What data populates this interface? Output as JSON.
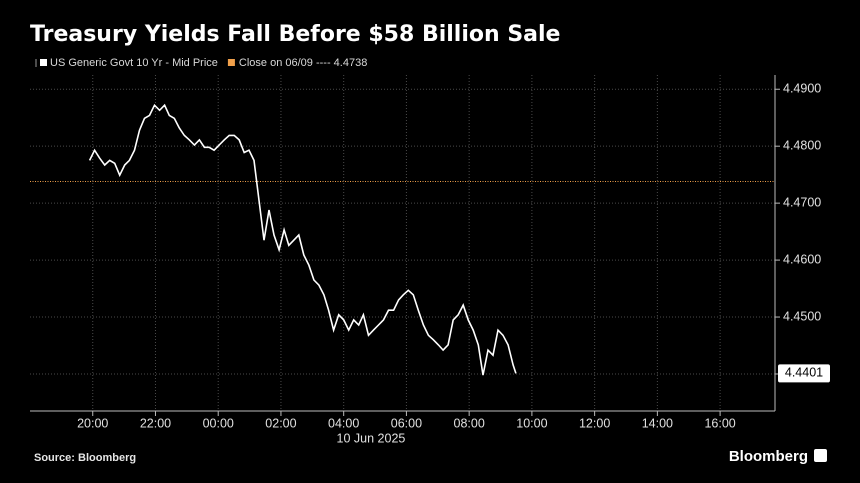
{
  "chart_data": {
    "type": "line",
    "title": "Treasury Yields Fall Before $58 Billion Sale",
    "source": "Source: Bloomberg",
    "brand": "Bloomberg",
    "x_sublabel": "10 Jun 2025",
    "xlim": [
      18,
      41.75
    ],
    "xticks": [
      {
        "value": 20,
        "label": "20:00"
      },
      {
        "value": 22,
        "label": "22:00"
      },
      {
        "value": 24,
        "label": "00:00"
      },
      {
        "value": 26,
        "label": "02:00"
      },
      {
        "value": 28,
        "label": "04:00"
      },
      {
        "value": 30,
        "label": "06:00"
      },
      {
        "value": 32,
        "label": "08:00"
      },
      {
        "value": 34,
        "label": "10:00"
      },
      {
        "value": 36,
        "label": "12:00"
      },
      {
        "value": 38,
        "label": "14:00"
      },
      {
        "value": 40,
        "label": "16:00"
      }
    ],
    "ylim": [
      4.4335,
      4.4925
    ],
    "yticks": [
      {
        "value": 4.44,
        "label": "4.4400"
      },
      {
        "value": 4.45,
        "label": "4.4500"
      },
      {
        "value": 4.46,
        "label": "4.4600"
      },
      {
        "value": 4.47,
        "label": "4.4700"
      },
      {
        "value": 4.48,
        "label": "4.4800"
      },
      {
        "value": 4.49,
        "label": "4.4900"
      }
    ],
    "grid": true,
    "reference": {
      "name": "Close on 06/09 ---- 4.4738",
      "value": 4.4738,
      "color": "#f0a04b"
    },
    "series": [
      {
        "name": "US Generic Govt 10 Yr - Mid Price",
        "color": "#ffffff",
        "x": [
          19.9,
          20.06,
          20.22,
          20.38,
          20.54,
          20.7,
          20.86,
          21.02,
          21.17,
          21.33,
          21.49,
          21.65,
          21.81,
          21.97,
          22.13,
          22.29,
          22.44,
          22.6,
          22.76,
          22.92,
          23.08,
          23.24,
          23.4,
          23.56,
          23.71,
          23.87,
          24.03,
          24.19,
          24.35,
          24.51,
          24.67,
          24.83,
          24.98,
          25.14,
          25.3,
          25.46,
          25.62,
          25.78,
          25.94,
          26.1,
          26.25,
          26.41,
          26.57,
          26.73,
          26.89,
          27.05,
          27.21,
          27.37,
          27.52,
          27.68,
          27.84,
          28.0,
          28.16,
          28.32,
          28.48,
          28.63,
          28.79,
          28.95,
          29.11,
          29.27,
          29.43,
          29.59,
          29.75,
          29.9,
          30.06,
          30.22,
          30.38,
          30.54,
          30.7,
          30.86,
          31.02,
          31.17,
          31.33,
          31.49,
          31.65,
          31.81,
          31.97,
          32.13,
          32.29,
          32.44,
          32.6,
          32.76,
          32.92,
          33.08,
          33.24,
          33.4,
          33.49
        ],
        "values": [
          4.4775,
          4.4793,
          4.4779,
          4.4767,
          4.4775,
          4.477,
          4.4749,
          4.4767,
          4.4775,
          4.4793,
          4.4828,
          4.4849,
          4.4854,
          4.4872,
          4.4863,
          4.4872,
          4.4854,
          4.4849,
          4.4832,
          4.4819,
          4.4811,
          4.4802,
          4.4811,
          4.4798,
          4.4798,
          4.4793,
          4.4802,
          4.4811,
          4.4819,
          4.4819,
          4.4811,
          4.4789,
          4.4793,
          4.4775,
          4.4705,
          4.4635,
          4.4688,
          4.4644,
          4.4618,
          4.4653,
          4.4626,
          4.4635,
          4.4644,
          4.4609,
          4.4591,
          4.4565,
          4.4556,
          4.4539,
          4.4512,
          4.4477,
          4.4504,
          4.4495,
          4.4477,
          4.4495,
          4.4486,
          4.4504,
          4.4468,
          4.4477,
          4.4486,
          4.4495,
          4.4512,
          4.4512,
          4.453,
          4.4539,
          4.4547,
          4.4539,
          4.4512,
          4.4486,
          4.4468,
          4.446,
          4.4451,
          4.4442,
          4.4451,
          4.4495,
          4.4504,
          4.4521,
          4.4495,
          4.4477,
          4.4451,
          4.4398,
          4.4442,
          4.4433,
          4.4477,
          4.4468,
          4.4451,
          4.4416,
          4.4401
        ]
      }
    ]
  }
}
